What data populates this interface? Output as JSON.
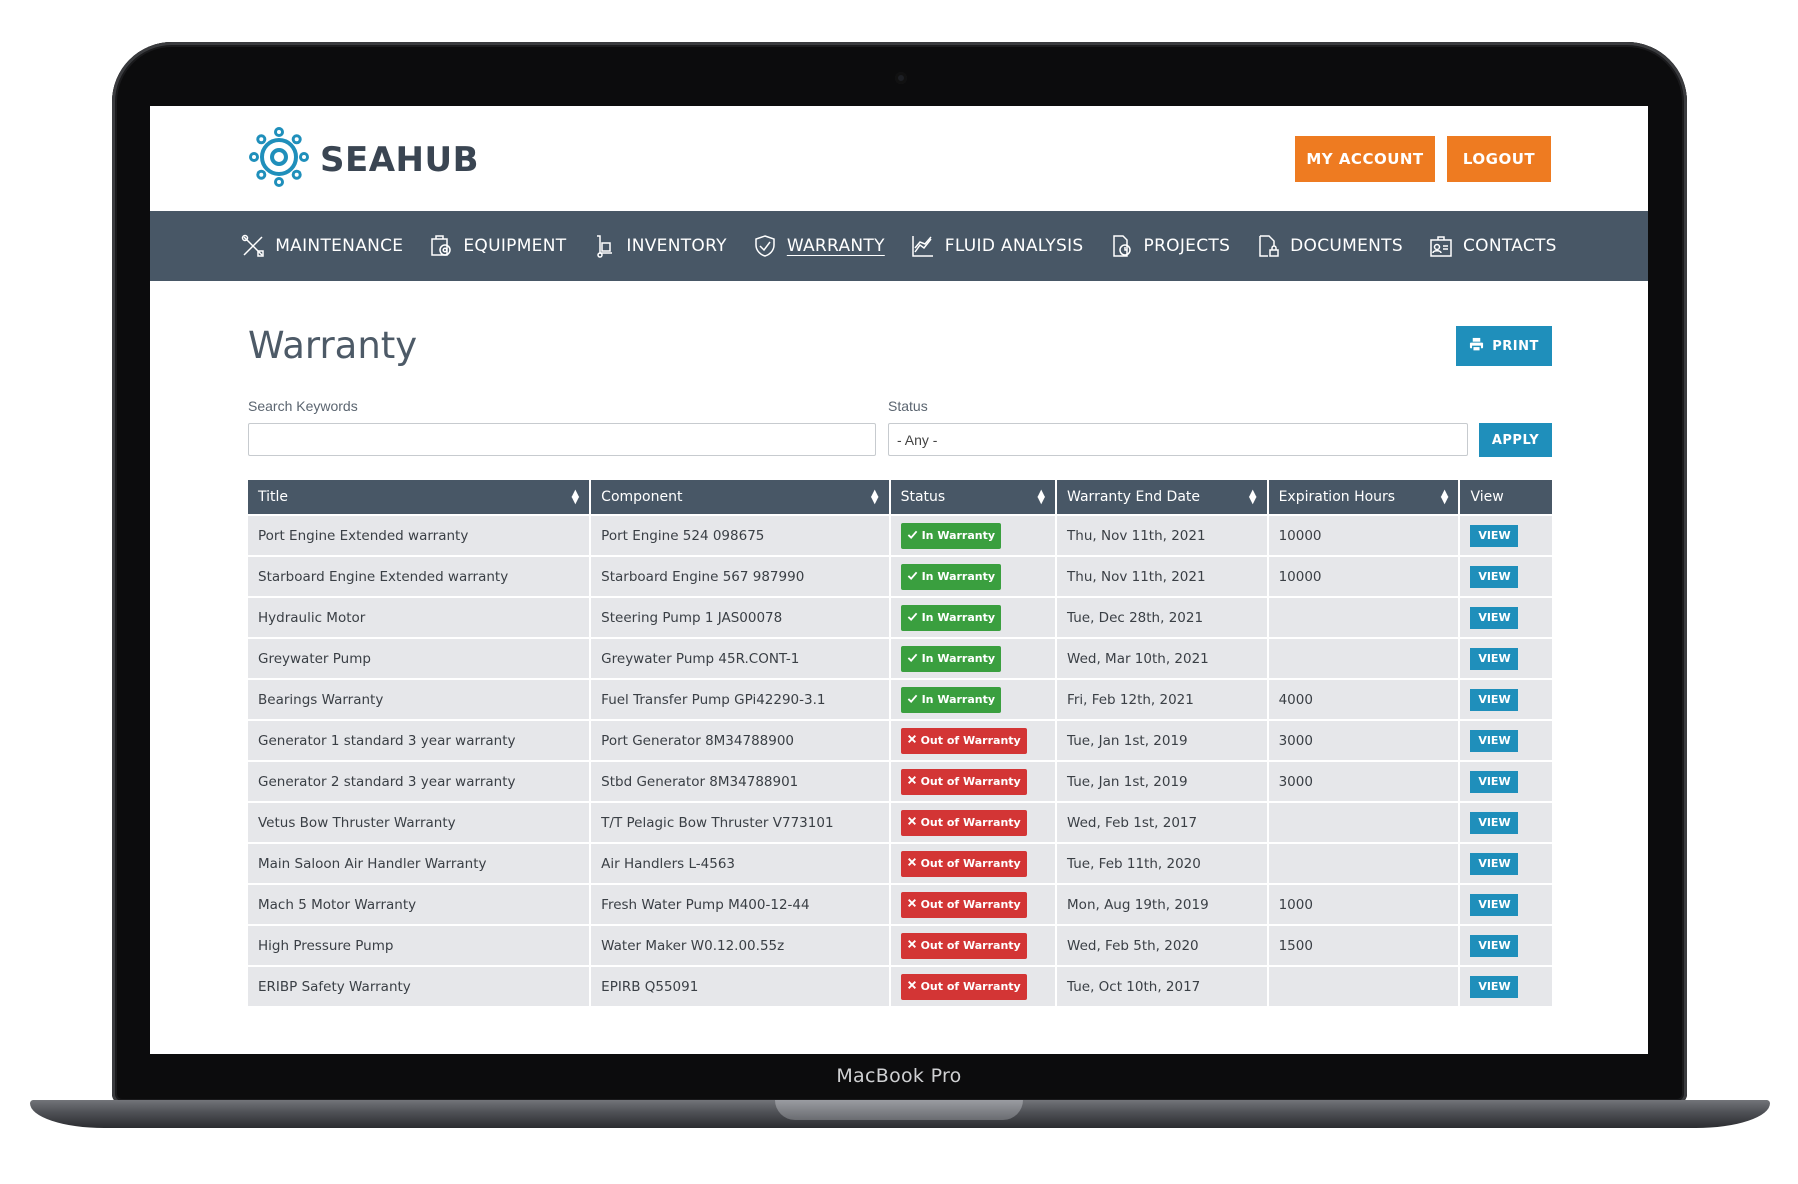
{
  "device": {
    "label": "MacBook Pro"
  },
  "header": {
    "logo_text": "SEAHUB",
    "account_label": "MY ACCOUNT",
    "logout_label": "LOGOUT"
  },
  "nav": [
    {
      "label": "MAINTENANCE",
      "icon": "wrench-screwdriver-icon",
      "active": false
    },
    {
      "label": "EQUIPMENT",
      "icon": "equipment-icon",
      "active": false
    },
    {
      "label": "INVENTORY",
      "icon": "hand-truck-icon",
      "active": false
    },
    {
      "label": "WARRANTY",
      "icon": "shield-check-icon",
      "active": true
    },
    {
      "label": "FLUID ANALYSIS",
      "icon": "line-chart-icon",
      "active": false
    },
    {
      "label": "PROJECTS",
      "icon": "projects-icon",
      "active": false
    },
    {
      "label": "DOCUMENTS",
      "icon": "document-lock-icon",
      "active": false
    },
    {
      "label": "CONTACTS",
      "icon": "contacts-icon",
      "active": false
    }
  ],
  "page": {
    "title": "Warranty",
    "print_label": "PRINT"
  },
  "filters": {
    "search_label": "Search Keywords",
    "search_value": "",
    "status_label": "Status",
    "status_value": "- Any -",
    "apply_label": "APPLY"
  },
  "table": {
    "columns": [
      "Title",
      "Component",
      "Status",
      "Warranty End Date",
      "Expiration Hours",
      "View"
    ],
    "view_label": "VIEW",
    "rows": [
      {
        "title": "Port Engine Extended warranty",
        "component": "Port Engine 524 098675",
        "status": "In Warranty",
        "in": true,
        "end_date": "Thu, Nov 11th, 2021",
        "hours": "10000"
      },
      {
        "title": "Starboard Engine Extended warranty",
        "component": "Starboard Engine 567 987990",
        "status": "In Warranty",
        "in": true,
        "end_date": "Thu, Nov 11th, 2021",
        "hours": "10000"
      },
      {
        "title": "Hydraulic Motor",
        "component": "Steering Pump 1 JAS00078",
        "status": "In Warranty",
        "in": true,
        "end_date": "Tue, Dec 28th, 2021",
        "hours": ""
      },
      {
        "title": "Greywater Pump",
        "component": "Greywater Pump 45R.CONT-1",
        "status": "In Warranty",
        "in": true,
        "end_date": "Wed, Mar 10th, 2021",
        "hours": ""
      },
      {
        "title": "Bearings Warranty",
        "component": "Fuel Transfer Pump GPi42290-3.1",
        "status": "In Warranty",
        "in": true,
        "end_date": "Fri, Feb 12th, 2021",
        "hours": "4000"
      },
      {
        "title": "Generator 1 standard 3 year warranty",
        "component": "Port Generator 8M34788900",
        "status": "Out of Warranty",
        "in": false,
        "end_date": "Tue, Jan 1st, 2019",
        "hours": "3000"
      },
      {
        "title": "Generator 2 standard 3 year warranty",
        "component": "Stbd Generator 8M34788901",
        "status": "Out of Warranty",
        "in": false,
        "end_date": "Tue, Jan 1st, 2019",
        "hours": "3000"
      },
      {
        "title": "Vetus Bow Thruster Warranty",
        "component": "T/T Pelagic Bow Thruster V773101",
        "status": "Out of Warranty",
        "in": false,
        "end_date": "Wed, Feb 1st, 2017",
        "hours": ""
      },
      {
        "title": "Main Saloon Air Handler Warranty",
        "component": "Air Handlers L-4563",
        "status": "Out of Warranty",
        "in": false,
        "end_date": "Tue, Feb 11th, 2020",
        "hours": ""
      },
      {
        "title": "Mach 5 Motor Warranty",
        "component": "Fresh Water Pump M400-12-44",
        "status": "Out of Warranty",
        "in": false,
        "end_date": "Mon, Aug 19th, 2019",
        "hours": "1000"
      },
      {
        "title": "High Pressure Pump",
        "component": "Water Maker W0.12.00.55z",
        "status": "Out of Warranty",
        "in": false,
        "end_date": "Wed, Feb 5th, 2020",
        "hours": "1500"
      },
      {
        "title": "ERIBP Safety Warranty",
        "component": "EPIRB Q55091",
        "status": "Out of Warranty",
        "in": false,
        "end_date": "Tue, Oct 10th, 2017",
        "hours": ""
      }
    ]
  },
  "colors": {
    "nav_bg": "#485766",
    "accent_orange": "#ee7b21",
    "accent_blue": "#1f8fbb",
    "status_in": "#3a9f3f",
    "status_out": "#d33535",
    "logo_blue": "#1f8fbb"
  }
}
